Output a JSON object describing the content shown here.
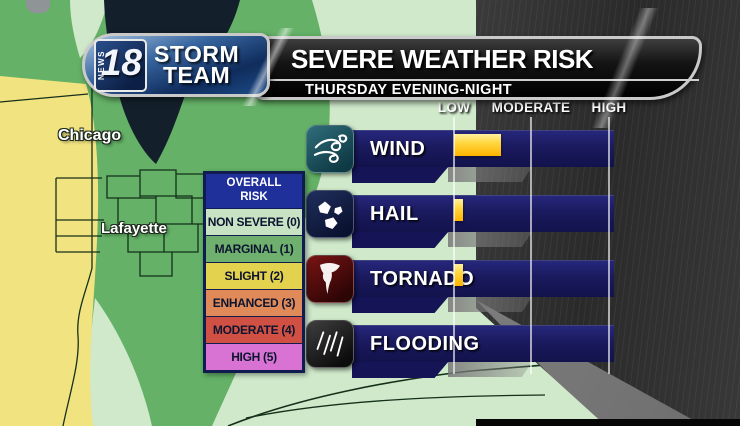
{
  "logo": {
    "news": "NEWS",
    "number": "18",
    "line1": "STORM",
    "line2": "TEAM"
  },
  "banner": {
    "title": "SEVERE WEATHER RISK",
    "subtitle": "THURSDAY EVENING-NIGHT"
  },
  "map": {
    "labels": {
      "city1": "Chicago",
      "city2": "Lafayette"
    },
    "colors": {
      "slight_yellow": "#f2e381",
      "marginal_green": "#64b167",
      "non_severe_pale_green": "#cfe9ca",
      "lake": "#131f2b",
      "background_rain": "#333333"
    }
  },
  "legend": {
    "title_line1": "OVERALL",
    "title_line2": "RISK",
    "items": [
      {
        "label": "NON SEVERE (0)",
        "color": "#c8e2c4"
      },
      {
        "label": "MARGINAL (1)",
        "color": "#6fb06e"
      },
      {
        "label": "SLIGHT (2)",
        "color": "#e2d24e"
      },
      {
        "label": "ENHANCED (3)",
        "color": "#df8a58"
      },
      {
        "label": "MODERATE (4)",
        "color": "#d05043"
      },
      {
        "label": "HIGH (5)",
        "color": "#d973d3"
      }
    ],
    "header_color": "#20309b"
  },
  "chart": {
    "scale_labels": {
      "low": "LOW",
      "moderate": "MODERATE",
      "high": "HIGH"
    },
    "bar_color": "#1a1a5e",
    "fill_color": "#ffc41a",
    "rows": [
      {
        "label": "WIND",
        "icon": "wind-icon",
        "value_percent": 30
      },
      {
        "label": "HAIL",
        "icon": "hail-icon",
        "value_percent": 6
      },
      {
        "label": "TORNADO",
        "icon": "tornado-icon",
        "value_percent": 6
      },
      {
        "label": "FLOODING",
        "icon": "flooding-icon",
        "value_percent": 0
      }
    ]
  },
  "chart_data": {
    "type": "bar",
    "title": "SEVERE WEATHER RISK",
    "subtitle": "THURSDAY EVENING-NIGHT",
    "categories": [
      "WIND",
      "HAIL",
      "TORNADO",
      "FLOODING"
    ],
    "values": [
      30,
      6,
      6,
      0
    ],
    "value_note": "percent of distance along LOW-to-HIGH scale",
    "xlabel": "",
    "ylabel": "",
    "axis_tick_labels": [
      "LOW",
      "MODERATE",
      "HIGH"
    ],
    "legend_entries": [
      "NON SEVERE (0)",
      "MARGINAL (1)",
      "SLIGHT (2)",
      "ENHANCED (3)",
      "MODERATE (4)",
      "HIGH (5)"
    ],
    "grid": true,
    "legend_position": "left"
  }
}
